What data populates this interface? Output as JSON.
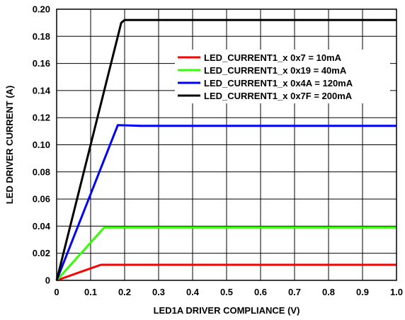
{
  "chart_data": {
    "type": "line",
    "title": "",
    "xlabel": "LED1A DRIVER COMPLIANCE (V)",
    "ylabel": "LED DRIVER CURRENT (A)",
    "xlim": [
      0,
      1.0
    ],
    "ylim": [
      0,
      0.2
    ],
    "x_ticks": [
      "0",
      "0.1",
      "0.2",
      "0.3",
      "0.4",
      "0.5",
      "0.6",
      "0.7",
      "0.8",
      "0.9",
      "1.0"
    ],
    "y_ticks": [
      "0",
      "0.02",
      "0.04",
      "0.06",
      "0.08",
      "0.10",
      "0.12",
      "0.14",
      "0.16",
      "0.18",
      "0.20"
    ],
    "grid": true,
    "legend_position": "top-right",
    "series": [
      {
        "name": "LED_CURRENT1_x 0x7 = 10mA",
        "color": "#ff0000",
        "x": [
          0,
          0.13,
          1.0
        ],
        "y": [
          0,
          0.0115,
          0.0115
        ]
      },
      {
        "name": "LED_CURRENT1_x 0x19 = 40mA",
        "color": "#33ff00",
        "x": [
          0,
          0.14,
          1.0
        ],
        "y": [
          0,
          0.039,
          0.039
        ]
      },
      {
        "name": "LED_CURRENT1_x 0x4A = 120mA",
        "color": "#0000ff",
        "x": [
          0,
          0.18,
          0.25,
          1.0
        ],
        "y": [
          0,
          0.1145,
          0.114,
          0.114
        ]
      },
      {
        "name": "LED_CURRENT1_x 0x7F = 200mA",
        "color": "#000000",
        "x": [
          0,
          0.19,
          0.2,
          0.25,
          1.0
        ],
        "y": [
          0,
          0.19,
          0.192,
          0.192,
          0.192
        ]
      }
    ]
  }
}
